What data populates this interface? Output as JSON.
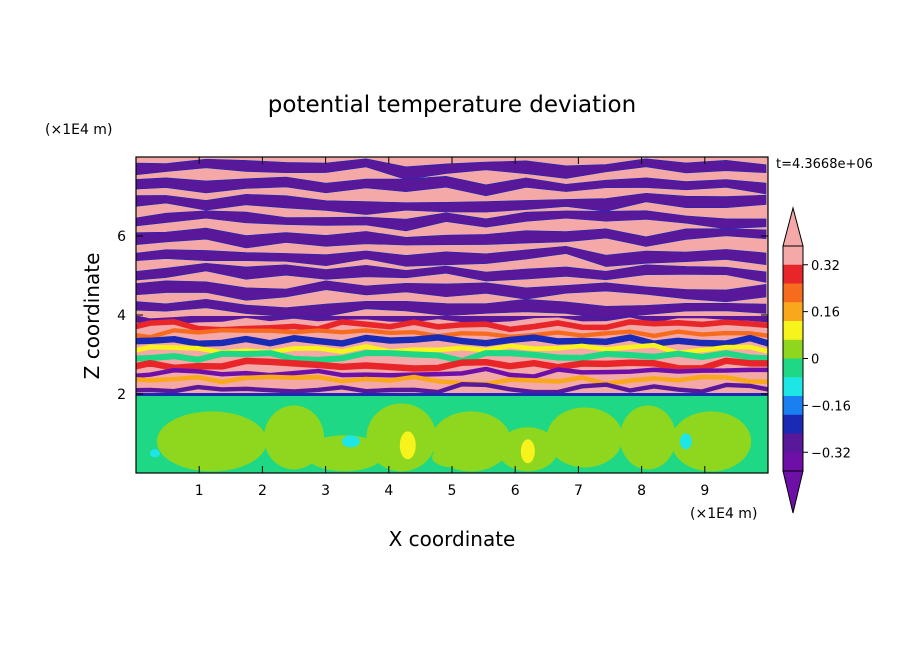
{
  "chart_data": {
    "type": "heatmap",
    "title": "potential temperature deviation",
    "xlabel": "X coordinate",
    "ylabel": "Z coordinate",
    "x_unit": "(×1E4 m)",
    "y_unit": "(×1E4 m)",
    "time_label": "t=4.3668e+06",
    "xlim": [
      0,
      10
    ],
    "ylim": [
      0,
      8
    ],
    "x_ticks": [
      "1",
      "2",
      "3",
      "4",
      "5",
      "6",
      "7",
      "8",
      "9"
    ],
    "y_ticks": [
      "2",
      "4",
      "6"
    ],
    "colorbar": {
      "levels": [
        "0.32",
        "0.16",
        "0",
        "−0.16",
        "−0.32"
      ],
      "level_values": [
        0.32,
        0.16,
        0,
        -0.16,
        -0.32
      ],
      "range": [
        -0.4,
        0.4
      ],
      "bands_top_to_bottom": [
        "#f4a9a8",
        "#e8262a",
        "#f76b1e",
        "#f9a81b",
        "#f7f31c",
        "#8fd61f",
        "#1ed885",
        "#1fe6e6",
        "#1a7ff0",
        "#1b2ab5",
        "#59189a",
        "#6e10a8"
      ],
      "extend": "both"
    },
    "regions": [
      {
        "z_range": [
          0,
          2
        ],
        "description": "near-zero deviations, green/cyan blobs",
        "dominant_value": 0
      },
      {
        "z_range": [
          2,
          4
        ],
        "description": "turbulent mixed layer",
        "dominant_value": 0.1
      },
      {
        "z_range": [
          4,
          8
        ],
        "description": "alternating warm/cold layers",
        "dominant_value": 0.4
      }
    ]
  }
}
